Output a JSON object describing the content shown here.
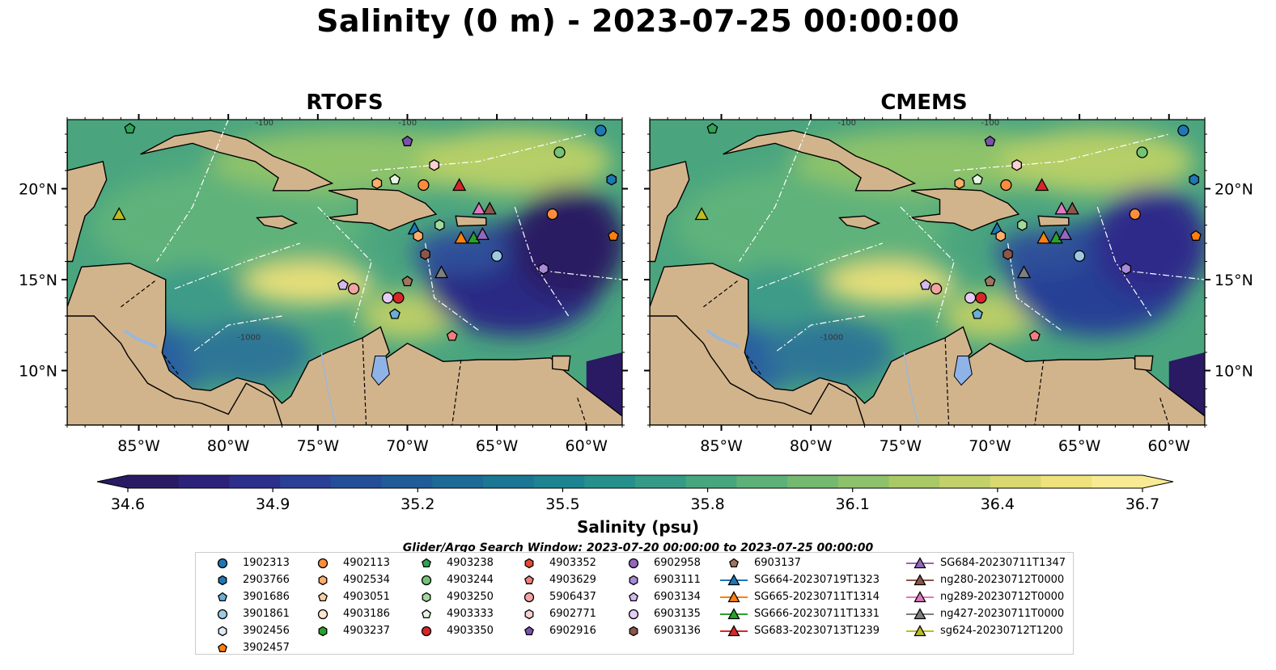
{
  "chart_data": [
    {
      "type": "heatmap",
      "title": "RTOFS",
      "x_ticks": [
        "85°W",
        "80°W",
        "75°W",
        "70°W",
        "65°W",
        "60°W"
      ],
      "x_values": [
        -85,
        -80,
        -75,
        -70,
        -65,
        -60
      ],
      "y_ticks": [
        "20°N",
        "15°N",
        "10°N"
      ],
      "y_values": [
        20,
        15,
        10
      ],
      "xlim": [
        -89,
        -58
      ],
      "ylim": [
        7,
        23.8
      ],
      "contour_labels": [
        "-100",
        "-1000"
      ],
      "grid": false
    },
    {
      "type": "heatmap",
      "title": "CMEMS",
      "x_ticks": [
        "85°W",
        "80°W",
        "75°W",
        "70°W",
        "65°W",
        "60°W"
      ],
      "x_values": [
        -85,
        -80,
        -75,
        -70,
        -65,
        -60
      ],
      "y_ticks": [
        "20°N",
        "15°N",
        "10°N"
      ],
      "y_values": [
        20,
        15,
        10
      ],
      "xlim": [
        -89,
        -58
      ],
      "ylim": [
        7,
        23.8
      ],
      "contour_labels": [
        "-100",
        "-1000"
      ],
      "grid": false
    }
  ],
  "main_title": "Salinity (0 m) - 2023-07-25 00:00:00",
  "colorbar": {
    "label": "Salinity (psu)",
    "ticks": [
      "34.6",
      "34.9",
      "35.2",
      "35.5",
      "35.8",
      "36.1",
      "36.4",
      "36.7"
    ],
    "range": [
      34.6,
      36.7
    ],
    "colors": [
      "#2a1a63",
      "#2c2279",
      "#2c2f8c",
      "#2a3f96",
      "#254e98",
      "#205c98",
      "#1d6a97",
      "#1b7794",
      "#1d8391",
      "#26908c",
      "#359b86",
      "#48a67e",
      "#5db078",
      "#75b971",
      "#8ec16b",
      "#a9c966",
      "#c2d16a",
      "#dad970",
      "#efe27c",
      "#f7ea93"
    ],
    "extend": "both"
  },
  "search_window": "Glider/Argo Search Window: 2023-07-20 00:00:00 to 2023-07-25 00:00:00",
  "legend": [
    {
      "label": "1902313",
      "marker": "circle",
      "color": "#1f77b4"
    },
    {
      "label": "2903766",
      "marker": "hexagon",
      "color": "#1f77b4"
    },
    {
      "label": "3901686",
      "marker": "pentagon",
      "color": "#6baed6"
    },
    {
      "label": "3901861",
      "marker": "circle",
      "color": "#9ecae1"
    },
    {
      "label": "3902456",
      "marker": "hexagon",
      "color": "#deebf7"
    },
    {
      "label": "3902457",
      "marker": "pentagon",
      "color": "#ff7f0e"
    },
    {
      "label": "4902113",
      "marker": "circle",
      "color": "#fd8d3c"
    },
    {
      "label": "4902534",
      "marker": "hexagon",
      "color": "#fdae6b"
    },
    {
      "label": "4903051",
      "marker": "pentagon",
      "color": "#fdd0a2"
    },
    {
      "label": "4903186",
      "marker": "circle",
      "color": "#fee6ce"
    },
    {
      "label": "4903237",
      "marker": "hexagon",
      "color": "#2ca02c"
    },
    {
      "label": "4903238",
      "marker": "pentagon",
      "color": "#31a354"
    },
    {
      "label": "4903244",
      "marker": "circle",
      "color": "#74c476"
    },
    {
      "label": "4903250",
      "marker": "hexagon",
      "color": "#a1d99b"
    },
    {
      "label": "4903333",
      "marker": "pentagon",
      "color": "#e5f5e0"
    },
    {
      "label": "4903350",
      "marker": "circle",
      "color": "#d62728"
    },
    {
      "label": "4903352",
      "marker": "hexagon",
      "color": "#e34a33"
    },
    {
      "label": "4903629",
      "marker": "pentagon",
      "color": "#f07f7f"
    },
    {
      "label": "5906437",
      "marker": "circle",
      "color": "#f4a3a3"
    },
    {
      "label": "6902771",
      "marker": "hexagon",
      "color": "#fbd0d0"
    },
    {
      "label": "6902916",
      "marker": "pentagon",
      "color": "#7b52ab"
    },
    {
      "label": "6902958",
      "marker": "circle",
      "color": "#9467bd"
    },
    {
      "label": "6903111",
      "marker": "hexagon",
      "color": "#a78bd6"
    },
    {
      "label": "6903134",
      "marker": "pentagon",
      "color": "#d4b9f0"
    },
    {
      "label": "6903135",
      "marker": "circle",
      "color": "#e6ccf5"
    },
    {
      "label": "6903136",
      "marker": "hexagon",
      "color": "#8c564b"
    },
    {
      "label": "6903137",
      "marker": "pentagon",
      "color": "#a0755f"
    },
    {
      "label": "SG664-20230719T1323",
      "marker": "triangle-line",
      "color": "#1f77b4"
    },
    {
      "label": "SG665-20230711T1314",
      "marker": "triangle-line",
      "color": "#ff7f0e"
    },
    {
      "label": "SG666-20230711T1331",
      "marker": "triangle-line",
      "color": "#2ca02c"
    },
    {
      "label": "SG683-20230713T1239",
      "marker": "triangle-line",
      "color": "#d62728"
    },
    {
      "label": "SG684-20230711T1347",
      "marker": "triangle-line",
      "color": "#9467bd"
    },
    {
      "label": "ng280-20230712T0000",
      "marker": "triangle-line",
      "color": "#8c564b"
    },
    {
      "label": "ng289-20230712T0000",
      "marker": "triangle-line",
      "color": "#e377c2"
    },
    {
      "label": "ng427-20230711T0000",
      "marker": "triangle-line",
      "color": "#7f7f7f"
    },
    {
      "label": "sg624-20230712T1200",
      "marker": "triangle-line",
      "color": "#bcbd22"
    }
  ],
  "stations": [
    {
      "id": "1902313",
      "lon": -59.2,
      "lat": 23.2
    },
    {
      "id": "4903244",
      "lon": -61.5,
      "lat": 22.0
    },
    {
      "id": "2903766",
      "lon": -58.6,
      "lat": 20.5
    },
    {
      "id": "4903238",
      "lon": -85.5,
      "lat": 23.3
    },
    {
      "id": "6902916",
      "lon": -70.0,
      "lat": 22.6
    },
    {
      "id": "6902771",
      "lon": -68.5,
      "lat": 21.3
    },
    {
      "id": "4902534",
      "lon": -71.7,
      "lat": 20.3
    },
    {
      "id": "4903333",
      "lon": -70.7,
      "lat": 20.5
    },
    {
      "id": "4902113",
      "lon": -69.1,
      "lat": 20.2
    },
    {
      "id": "SG683-20230713T1239",
      "lon": -67.1,
      "lat": 20.2
    },
    {
      "id": "ng289-20230712T0000",
      "lon": -66.0,
      "lat": 18.9
    },
    {
      "id": "ng280-20230712T0000",
      "lon": -65.4,
      "lat": 18.9
    },
    {
      "id": "3902457",
      "lon": -58.5,
      "lat": 17.4
    },
    {
      "id": "4902113b",
      "lon": -61.9,
      "lat": 18.6
    },
    {
      "id": "sg624-20230712T1200",
      "lon": -86.1,
      "lat": 18.6
    },
    {
      "id": "4903250",
      "lon": -68.2,
      "lat": 18.0
    },
    {
      "id": "SG664-20230719T1323",
      "lon": -69.6,
      "lat": 17.8
    },
    {
      "id": "4902534b",
      "lon": -69.4,
      "lat": 17.4
    },
    {
      "id": "SG665-20230711T1314",
      "lon": -67.0,
      "lat": 17.3
    },
    {
      "id": "SG666-20230711T1331",
      "lon": -66.3,
      "lat": 17.3
    },
    {
      "id": "SG684-20230711T1347",
      "lon": -65.8,
      "lat": 17.5
    },
    {
      "id": "3901861",
      "lon": -65.0,
      "lat": 16.3
    },
    {
      "id": "6903136",
      "lon": -69.0,
      "lat": 16.4
    },
    {
      "id": "ng427-20230711T0000",
      "lon": -68.1,
      "lat": 15.4
    },
    {
      "id": "6903111",
      "lon": -62.4,
      "lat": 15.6
    },
    {
      "id": "6903137",
      "lon": -70.0,
      "lat": 14.9
    },
    {
      "id": "6903134",
      "lon": -73.6,
      "lat": 14.7
    },
    {
      "id": "5906437",
      "lon": -73.0,
      "lat": 14.5
    },
    {
      "id": "6903135",
      "lon": -71.1,
      "lat": 14.0
    },
    {
      "id": "4903350",
      "lon": -70.5,
      "lat": 14.0
    },
    {
      "id": "3901686",
      "lon": -70.7,
      "lat": 13.1
    },
    {
      "id": "4903629",
      "lon": -67.5,
      "lat": 11.9
    }
  ]
}
